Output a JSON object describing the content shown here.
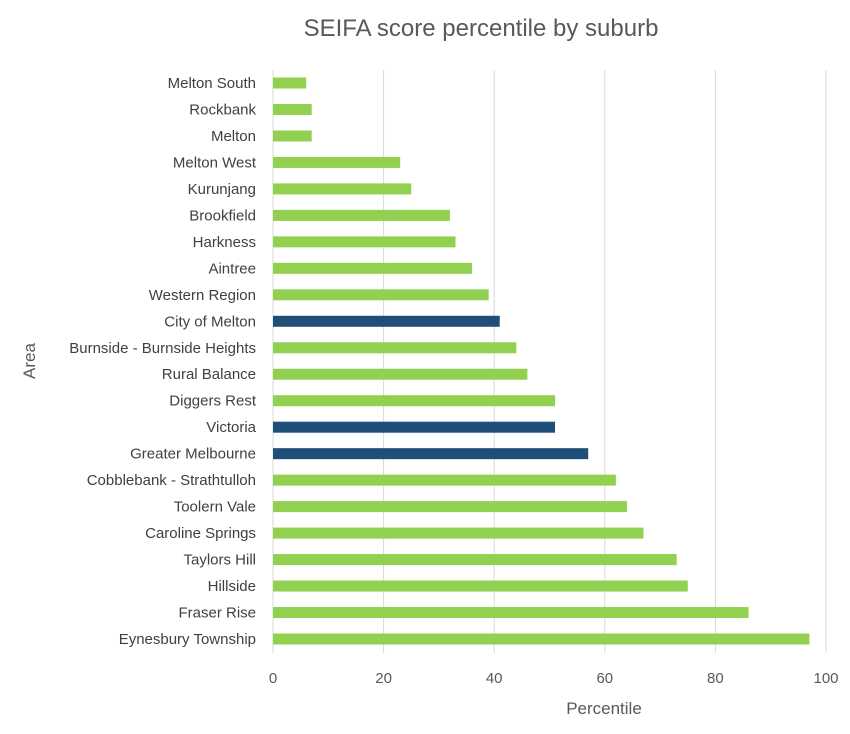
{
  "chart_data": {
    "type": "bar",
    "orientation": "horizontal",
    "title": "SEIFA score percentile by suburb",
    "xlabel": "Percentile",
    "ylabel": "Area",
    "xlim": [
      0,
      100
    ],
    "xticks": [
      0,
      20,
      40,
      60,
      80,
      100
    ],
    "grid": true,
    "legend": "none",
    "categories": [
      "Melton South",
      "Rockbank",
      "Melton",
      "Melton West",
      "Kurunjang",
      "Brookfield",
      "Harkness",
      "Aintree",
      "Western Region",
      "City of Melton",
      "Burnside - Burnside Heights",
      "Rural Balance",
      "Diggers Rest",
      "Victoria",
      "Greater Melbourne",
      "Cobblebank - Strathtulloh",
      "Toolern Vale",
      "Caroline Springs",
      "Taylors Hill",
      "Hillside",
      "Fraser Rise",
      "Eynesbury Township"
    ],
    "values": [
      6,
      7,
      7,
      23,
      25,
      32,
      33,
      36,
      39,
      41,
      44,
      46,
      51,
      51,
      57,
      62,
      64,
      67,
      73,
      75,
      86,
      97
    ],
    "highlight": [
      false,
      false,
      false,
      false,
      false,
      false,
      false,
      false,
      false,
      true,
      false,
      false,
      false,
      true,
      true,
      false,
      false,
      false,
      false,
      false,
      false,
      false
    ],
    "colors": {
      "default": "#92d050",
      "highlight": "#1f4e79"
    }
  }
}
